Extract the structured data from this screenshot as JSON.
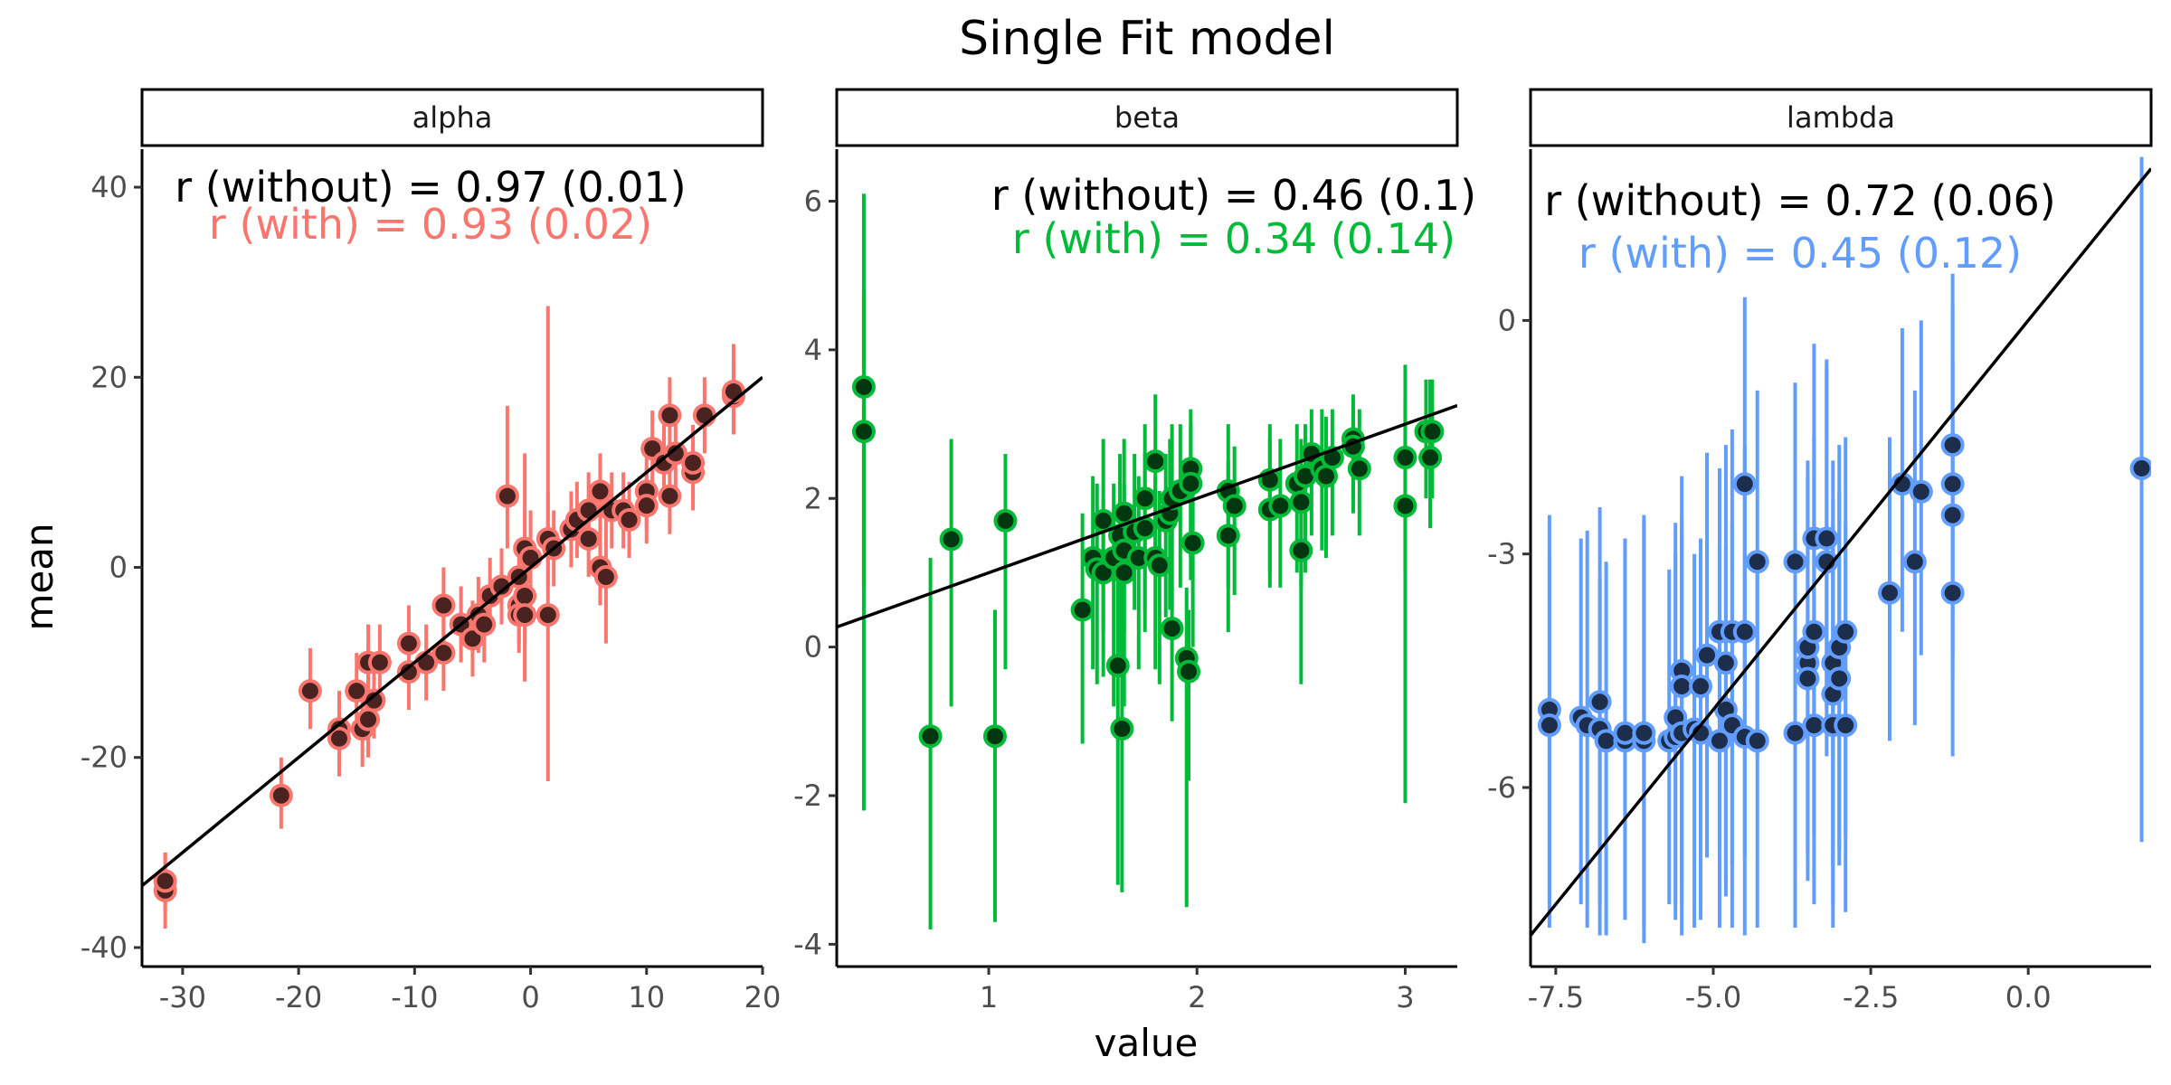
{
  "chart_data": {
    "type": "scatter",
    "title": "Single Fit model",
    "xlabel": "value",
    "ylabel": "mean",
    "grid": false,
    "panels": [
      {
        "name": "alpha",
        "color": "#F8766D",
        "xlim": [
          -33.5,
          20
        ],
        "ylim": [
          -42,
          44
        ],
        "xticks": [
          -30,
          -20,
          -10,
          0,
          10,
          20
        ],
        "yticks": [
          -40,
          -20,
          0,
          20,
          40
        ],
        "line": {
          "intercept": 0,
          "slope": 1
        },
        "annotation_without": "r (without) = 0.97 (0.01)",
        "annotation_with": "r (with) = 0.93 (0.02)",
        "points": [
          [
            -31.5,
            -34,
            -38,
            -30
          ],
          [
            -31.5,
            -33,
            -36,
            -30
          ],
          [
            -21.5,
            -24,
            -27.5,
            -20
          ],
          [
            -19,
            -13,
            -17,
            -8.5
          ],
          [
            -16.5,
            -17,
            -21,
            -13
          ],
          [
            -16.5,
            -18,
            -22,
            -14
          ],
          [
            -15,
            -13,
            -17,
            -9
          ],
          [
            -14.5,
            -17,
            -21,
            -13
          ],
          [
            -14,
            -16,
            -20,
            -12
          ],
          [
            -14,
            -10,
            -14,
            -6
          ],
          [
            -13.5,
            -14,
            -18,
            -10
          ],
          [
            -13,
            -10,
            -14,
            -6
          ],
          [
            -10.5,
            -8,
            -12,
            -4
          ],
          [
            -10.5,
            -11,
            -15,
            -7
          ],
          [
            -9,
            -10,
            -14,
            -6
          ],
          [
            -7.5,
            -4,
            -8,
            0
          ],
          [
            -7.5,
            -9,
            -13,
            -5
          ],
          [
            -6,
            -6,
            -10,
            -2
          ],
          [
            -5,
            -7.5,
            -11.5,
            -3.5
          ],
          [
            -4.5,
            -5,
            -9,
            -1
          ],
          [
            -4,
            -6,
            -10,
            -2
          ],
          [
            -3.5,
            -3,
            -7,
            1
          ],
          [
            -2.5,
            -2,
            -6,
            2
          ],
          [
            -2,
            7.5,
            2,
            17
          ],
          [
            -1,
            -1,
            -5,
            3
          ],
          [
            -1,
            -4,
            -8,
            0
          ],
          [
            -1,
            -5,
            -9,
            -1
          ],
          [
            -0.5,
            2,
            -8,
            12
          ],
          [
            -0.5,
            -3,
            -12,
            6
          ],
          [
            -0.5,
            -5,
            -12,
            2
          ],
          [
            0,
            1,
            -4,
            6
          ],
          [
            1.5,
            -5,
            -22.5,
            27.5
          ],
          [
            1.5,
            3,
            -2,
            8
          ],
          [
            2,
            2,
            -2,
            6
          ],
          [
            3.5,
            4,
            0,
            8
          ],
          [
            4,
            5,
            1,
            9
          ],
          [
            5,
            6,
            2,
            10
          ],
          [
            5,
            3,
            -1,
            7
          ],
          [
            6,
            8,
            4,
            12
          ],
          [
            6,
            0,
            -4,
            4
          ],
          [
            6.5,
            -1,
            -8,
            8
          ],
          [
            7,
            6,
            2,
            10
          ],
          [
            8,
            6,
            2,
            10
          ],
          [
            8.5,
            5,
            1,
            9
          ],
          [
            10,
            8,
            4,
            12
          ],
          [
            10,
            6.5,
            2.5,
            10.5
          ],
          [
            10.5,
            12.5,
            8.5,
            16.5
          ],
          [
            11.5,
            11,
            7,
            15
          ],
          [
            12,
            7.5,
            3.5,
            11.5
          ],
          [
            12,
            16,
            12,
            20
          ],
          [
            12.5,
            12,
            8,
            16
          ],
          [
            14,
            10,
            6,
            14
          ],
          [
            14,
            11,
            7,
            15
          ],
          [
            15,
            16,
            12,
            20
          ],
          [
            17.5,
            18,
            14,
            22
          ],
          [
            17.5,
            18.5,
            14,
            23.5
          ]
        ]
      },
      {
        "name": "beta",
        "color": "#00BA38",
        "xlim": [
          0.27,
          3.25
        ],
        "ylim": [
          -4.3,
          6.7
        ],
        "xticks": [
          1,
          2,
          3
        ],
        "yticks": [
          -4,
          -2,
          0,
          2,
          4,
          6
        ],
        "line": {
          "intercept": 0,
          "slope": 1
        },
        "annotation_without": "r (without) = 0.46 (0.1)",
        "annotation_with": "r (with) = 0.34 (0.14)",
        "points": [
          [
            0.4,
            3.5,
            0.8,
            6.1
          ],
          [
            0.4,
            2.9,
            -2.2,
            4.8
          ],
          [
            0.72,
            -1.2,
            -3.8,
            1.2
          ],
          [
            0.82,
            1.45,
            -0.8,
            2.8
          ],
          [
            1.03,
            -1.2,
            -3.7,
            0.5
          ],
          [
            1.08,
            1.7,
            -0.3,
            2.6
          ],
          [
            1.45,
            0.5,
            -1.3,
            1.8
          ],
          [
            1.5,
            1.2,
            -0.3,
            2.3
          ],
          [
            1.52,
            1.05,
            -0.5,
            2.2
          ],
          [
            1.55,
            1.7,
            0.2,
            2.8
          ],
          [
            1.55,
            1.0,
            -0.4,
            2.0
          ],
          [
            1.6,
            1.2,
            -0.8,
            2.2
          ],
          [
            1.62,
            -0.25,
            -3.2,
            1.2
          ],
          [
            1.63,
            1.5,
            -0.2,
            2.6
          ],
          [
            1.64,
            -1.1,
            -3.3,
            1.0
          ],
          [
            1.65,
            1.8,
            0.2,
            2.8
          ],
          [
            1.65,
            1.3,
            -0.3,
            2.2
          ],
          [
            1.65,
            1.0,
            -0.8,
            2.1
          ],
          [
            1.7,
            1.55,
            0.5,
            2.6
          ],
          [
            1.72,
            1.2,
            -0.3,
            2.3
          ],
          [
            1.75,
            2.0,
            0.5,
            3.0
          ],
          [
            1.75,
            1.6,
            0.2,
            2.6
          ],
          [
            1.8,
            2.5,
            1.2,
            3.4
          ],
          [
            1.8,
            1.2,
            -0.3,
            2.3
          ],
          [
            1.82,
            1.1,
            -0.5,
            2.1
          ],
          [
            1.85,
            1.7,
            0.4,
            2.6
          ],
          [
            1.87,
            1.8,
            0.5,
            2.8
          ],
          [
            1.88,
            2.0,
            0.5,
            3.0
          ],
          [
            1.88,
            0.25,
            -1.0,
            1.8
          ],
          [
            1.92,
            2.1,
            0.8,
            3.0
          ],
          [
            1.95,
            -0.15,
            -3.5,
            0.8
          ],
          [
            1.96,
            -0.33,
            -1.8,
            0.5
          ],
          [
            1.97,
            2.4,
            1.2,
            3.2
          ],
          [
            1.97,
            2.2,
            0.9,
            3.0
          ],
          [
            1.98,
            1.4,
            0.0,
            2.5
          ],
          [
            2.15,
            2.1,
            0.8,
            3.0
          ],
          [
            2.15,
            1.5,
            0.2,
            2.5
          ],
          [
            2.18,
            1.9,
            0.7,
            2.7
          ],
          [
            2.35,
            1.85,
            0.8,
            2.8
          ],
          [
            2.35,
            2.25,
            1.0,
            3.0
          ],
          [
            2.4,
            1.9,
            0.8,
            2.8
          ],
          [
            2.48,
            2.2,
            1.0,
            3.0
          ],
          [
            2.5,
            1.3,
            -0.5,
            2.3
          ],
          [
            2.5,
            1.95,
            0.8,
            2.8
          ],
          [
            2.52,
            2.3,
            1.0,
            3.0
          ],
          [
            2.55,
            2.6,
            1.5,
            3.2
          ],
          [
            2.6,
            2.4,
            1.3,
            3.2
          ],
          [
            2.62,
            2.3,
            1.2,
            3.1
          ],
          [
            2.65,
            2.55,
            1.5,
            3.2
          ],
          [
            2.75,
            2.8,
            2.0,
            3.4
          ],
          [
            2.75,
            2.7,
            1.8,
            3.3
          ],
          [
            2.78,
            2.4,
            1.5,
            3.2
          ],
          [
            3.0,
            2.55,
            1.0,
            3.8
          ],
          [
            3.0,
            1.9,
            -2.1,
            3.3
          ],
          [
            3.1,
            2.9,
            2.0,
            3.6
          ],
          [
            3.12,
            2.55,
            1.6,
            3.6
          ],
          [
            3.13,
            2.9,
            2.0,
            3.6
          ]
        ]
      },
      {
        "name": "lambda",
        "color": "#619CFF",
        "xlim": [
          -7.9,
          1.95
        ],
        "ylim": [
          -8.3,
          2.2
        ],
        "xticks": [
          -7.5,
          -5.0,
          -2.5,
          0.0
        ],
        "yticks": [
          -6,
          -3,
          0
        ],
        "line": {
          "intercept": 0,
          "slope": 1
        },
        "annotation_without": "r (without) = 0.72 (0.06)",
        "annotation_with": "r (with) = 0.45 (0.12)",
        "points": [
          [
            -7.6,
            -5.0,
            -7.5,
            -2.5
          ],
          [
            -7.6,
            -5.2,
            -7.8,
            -3.0
          ],
          [
            -7.1,
            -5.1,
            -7.5,
            -2.8
          ],
          [
            -7.0,
            -5.2,
            -7.8,
            -2.7
          ],
          [
            -6.8,
            -5.25,
            -7.9,
            -2.4
          ],
          [
            -6.8,
            -4.9,
            -7.5,
            -3.3
          ],
          [
            -6.7,
            -5.4,
            -7.9,
            -3.1
          ],
          [
            -6.4,
            -5.4,
            -7.6,
            -2.8
          ],
          [
            -6.4,
            -5.3,
            -7.7,
            -3.0
          ],
          [
            -6.1,
            -5.4,
            -8.0,
            -2.5
          ],
          [
            -6.1,
            -5.3,
            -7.8,
            -2.6
          ],
          [
            -5.7,
            -5.4,
            -7.5,
            -3.2
          ],
          [
            -5.6,
            -5.35,
            -7.7,
            -3.0
          ],
          [
            -5.6,
            -5.1,
            -7.5,
            -2.6
          ],
          [
            -5.5,
            -4.5,
            -7.3,
            -2.0
          ],
          [
            -5.5,
            -5.3,
            -7.9,
            -2.7
          ],
          [
            -5.5,
            -4.7,
            -7.5,
            -2.5
          ],
          [
            -5.3,
            -5.25,
            -7.8,
            -3.0
          ],
          [
            -5.2,
            -4.7,
            -7.5,
            -2.8
          ],
          [
            -5.2,
            -5.3,
            -7.7,
            -3.0
          ],
          [
            -5.1,
            -4.3,
            -6.9,
            -1.7
          ],
          [
            -4.9,
            -4.0,
            -6.8,
            -1.9
          ],
          [
            -4.9,
            -5.4,
            -7.8,
            -2.9
          ],
          [
            -4.8,
            -4.4,
            -7.2,
            -1.6
          ],
          [
            -4.8,
            -5.0,
            -7.4,
            -2.9
          ],
          [
            -4.7,
            -4.0,
            -7.0,
            -1.4
          ],
          [
            -4.7,
            -5.2,
            -7.8,
            -2.6
          ],
          [
            -4.5,
            -4.0,
            -6.9,
            -1.6
          ],
          [
            -4.5,
            -2.1,
            -4.6,
            0.3
          ],
          [
            -4.5,
            -5.35,
            -7.9,
            -3.0
          ],
          [
            -4.3,
            -3.1,
            -5.6,
            -0.9
          ],
          [
            -4.3,
            -5.4,
            -7.8,
            -3.0
          ],
          [
            -3.7,
            -3.1,
            -5.6,
            -0.8
          ],
          [
            -3.7,
            -5.3,
            -7.8,
            -3.0
          ],
          [
            -3.5,
            -4.4,
            -7.0,
            -2.0
          ],
          [
            -3.5,
            -4.2,
            -6.8,
            -1.8
          ],
          [
            -3.5,
            -4.6,
            -7.2,
            -2.0
          ],
          [
            -3.4,
            -2.8,
            -5.4,
            -0.3
          ],
          [
            -3.4,
            -4.0,
            -6.6,
            -1.5
          ],
          [
            -3.4,
            -5.2,
            -7.5,
            -2.8
          ],
          [
            -3.2,
            -2.8,
            -5.0,
            -0.5
          ],
          [
            -3.2,
            -3.1,
            -5.6,
            -0.6
          ],
          [
            -3.1,
            -4.4,
            -7.0,
            -1.8
          ],
          [
            -3.1,
            -4.8,
            -7.5,
            -2.3
          ],
          [
            -3.1,
            -5.2,
            -7.8,
            -2.6
          ],
          [
            -3.0,
            -4.2,
            -6.8,
            -1.6
          ],
          [
            -3.0,
            -4.6,
            -7.0,
            -2.2
          ],
          [
            -2.9,
            -4.0,
            -6.6,
            -1.5
          ],
          [
            -2.9,
            -5.2,
            -7.6,
            -2.6
          ],
          [
            -2.2,
            -3.5,
            -5.4,
            -1.5
          ],
          [
            -2.0,
            -2.1,
            -4.0,
            -0.1
          ],
          [
            -1.8,
            -3.1,
            -5.2,
            -0.9
          ],
          [
            -1.7,
            -2.2,
            -4.3,
            0.0
          ],
          [
            -1.2,
            -1.6,
            -3.8,
            0.6
          ],
          [
            -1.2,
            -2.1,
            -4.3,
            0.2
          ],
          [
            -1.2,
            -2.5,
            -4.6,
            -0.5
          ],
          [
            -1.2,
            -3.5,
            -5.6,
            -1.4
          ],
          [
            1.8,
            -1.9,
            -6.7,
            2.1
          ]
        ]
      }
    ]
  }
}
